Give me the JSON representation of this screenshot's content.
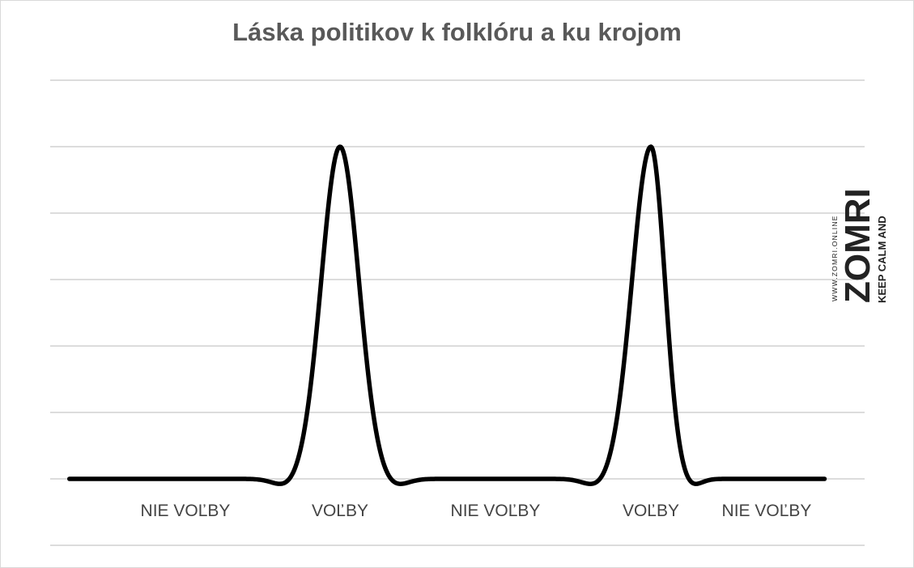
{
  "chart_data": {
    "type": "line",
    "title": "Láska politikov k folklóru a ku krojom",
    "categories": [
      "NIE VOĽBY",
      "VOĽBY",
      "NIE VOĽBY",
      "VOĽBY",
      "NIE VOĽBY"
    ],
    "x": [
      0,
      1,
      2,
      3,
      4
    ],
    "values": [
      0,
      5,
      0,
      5,
      0
    ],
    "ylim": [
      -1,
      6
    ],
    "grid": true,
    "legend": "none",
    "series_color": "#000000"
  },
  "watermark": {
    "line1": "KEEP CALM AND",
    "line2": "ZOMRI",
    "url": "WWW.ZOMRI.ONLINE"
  }
}
